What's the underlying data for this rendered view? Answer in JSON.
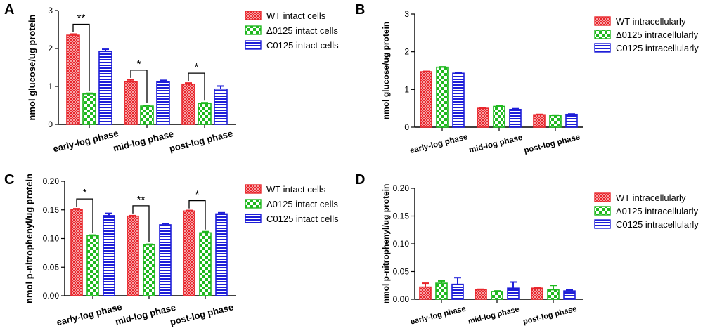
{
  "colors": {
    "wt": "#e8262c",
    "delta": "#1fb81f",
    "comp": "#1e1ed8",
    "wt_fill": "#f5a3a6",
    "delta_fill": "#a4e8a4",
    "comp_fill": "#a8a8f0",
    "axis": "#000000"
  },
  "chart_data": [
    {
      "panel": "A",
      "type": "bar",
      "ylabel": "nmol glucose/ug protein",
      "ylim": [
        0,
        3
      ],
      "yticks": [
        "0",
        "1",
        "2",
        "3"
      ],
      "tick_values": [
        0,
        1,
        2,
        3
      ],
      "categories": [
        "early-log phase",
        "mid-log phase",
        "post-log phase"
      ],
      "series": [
        {
          "name": "WT intact cells",
          "values": [
            2.35,
            1.12,
            1.06
          ],
          "errors": [
            0.03,
            0.05,
            0.03
          ]
        },
        {
          "name": "Δ0125 intact cells",
          "values": [
            0.8,
            0.48,
            0.55
          ],
          "errors": [
            0.02,
            0.02,
            0.02
          ]
        },
        {
          "name": "C0125 intact cells",
          "values": [
            1.92,
            1.12,
            0.93
          ],
          "errors": [
            0.06,
            0.04,
            0.08
          ]
        }
      ],
      "significance": [
        "**",
        "*",
        "*"
      ]
    },
    {
      "panel": "B",
      "type": "bar",
      "ylabel": "nmol glucose/ug protein",
      "ylim": [
        0,
        3
      ],
      "yticks": [
        "0",
        "1",
        "2",
        "3"
      ],
      "tick_values": [
        0,
        1,
        2,
        3
      ],
      "categories": [
        "early-log phase",
        "mid-log phase",
        "post-log phase"
      ],
      "series": [
        {
          "name": "WT intracellularly",
          "values": [
            1.47,
            0.5,
            0.33
          ],
          "errors": [
            0.01,
            0.01,
            0.01
          ]
        },
        {
          "name": "Δ0125 intracellularly",
          "values": [
            1.59,
            0.55,
            0.31
          ],
          "errors": [
            0.01,
            0.01,
            0.01
          ]
        },
        {
          "name": "C0125 intracellularly",
          "values": [
            1.43,
            0.47,
            0.34
          ],
          "errors": [
            0.01,
            0.02,
            0.01
          ]
        }
      ],
      "significance": [
        "",
        "",
        ""
      ]
    },
    {
      "panel": "C",
      "type": "bar",
      "ylabel": "nmol p-nitrophenyl/ug protein",
      "ylim": [
        0,
        0.2
      ],
      "yticks": [
        "0.00",
        "0.05",
        "0.10",
        "0.15",
        "0.20"
      ],
      "tick_values": [
        0,
        0.05,
        0.1,
        0.15,
        0.2
      ],
      "categories": [
        "early-log phase",
        "mid-log phase",
        "post-log phase"
      ],
      "series": [
        {
          "name": "WT intact cells",
          "values": [
            0.151,
            0.139,
            0.148
          ],
          "errors": [
            0.001,
            0.001,
            0.001
          ]
        },
        {
          "name": "Δ0125 intact cells",
          "values": [
            0.105,
            0.089,
            0.11
          ],
          "errors": [
            0.001,
            0.001,
            0.002
          ]
        },
        {
          "name": "C0125 intact cells",
          "values": [
            0.14,
            0.124,
            0.143
          ],
          "errors": [
            0.004,
            0.002,
            0.002
          ]
        }
      ],
      "significance": [
        "*",
        "**",
        "*"
      ]
    },
    {
      "panel": "D",
      "type": "bar",
      "ylabel": "nmol p-nitrophenyl/ug protein",
      "ylim": [
        0,
        0.2
      ],
      "yticks": [
        "0.00",
        "0.05",
        "0.10",
        "0.15",
        "0.20"
      ],
      "tick_values": [
        0,
        0.05,
        0.1,
        0.15,
        0.2
      ],
      "categories": [
        "early-log phase",
        "mid-log phase",
        "post-log phase"
      ],
      "series": [
        {
          "name": "WT intracellularly",
          "values": [
            0.022,
            0.017,
            0.02
          ],
          "errors": [
            0.007,
            0.001,
            0.001
          ]
        },
        {
          "name": "Δ0125 intracellularly",
          "values": [
            0.029,
            0.014,
            0.017
          ],
          "errors": [
            0.004,
            0.001,
            0.008
          ]
        },
        {
          "name": "C0125 intracellularly",
          "values": [
            0.027,
            0.02,
            0.015
          ],
          "errors": [
            0.012,
            0.011,
            0.002
          ]
        }
      ],
      "significance": [
        "",
        "",
        ""
      ]
    }
  ]
}
